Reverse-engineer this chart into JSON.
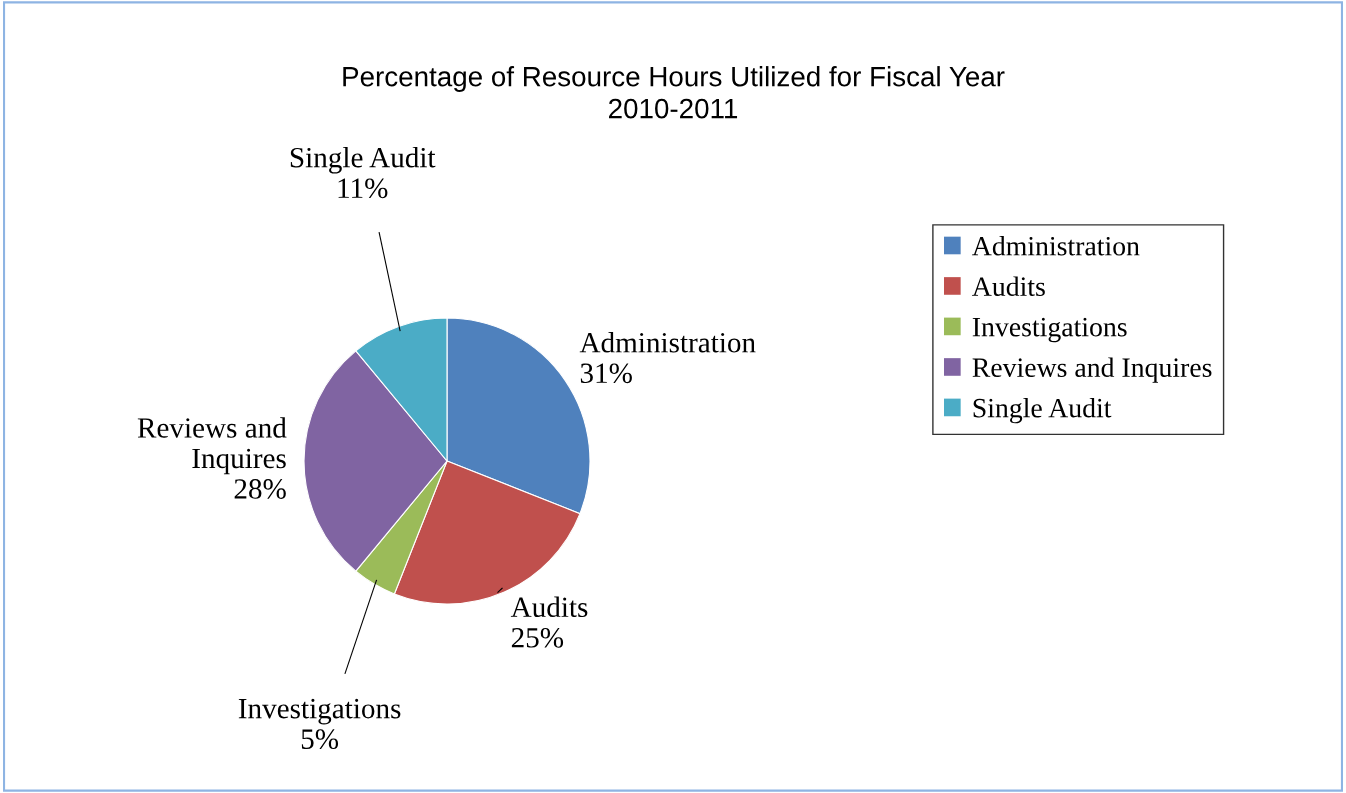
{
  "chart_data": {
    "type": "pie",
    "title": "Percentage of Resource Hours Utilized for Fiscal Year\n2010-2011",
    "categories": [
      "Administration",
      "Audits",
      "Investigations",
      "Reviews and Inquires",
      "Single Audit"
    ],
    "values": [
      31,
      25,
      5,
      28,
      11
    ],
    "value_labels": [
      "31%",
      "25%",
      "5%",
      "28%",
      "11%"
    ],
    "colors": [
      "#4f81bd",
      "#c0504d",
      "#9bbb59",
      "#8064a2",
      "#4bacc6"
    ],
    "legend": "right"
  }
}
